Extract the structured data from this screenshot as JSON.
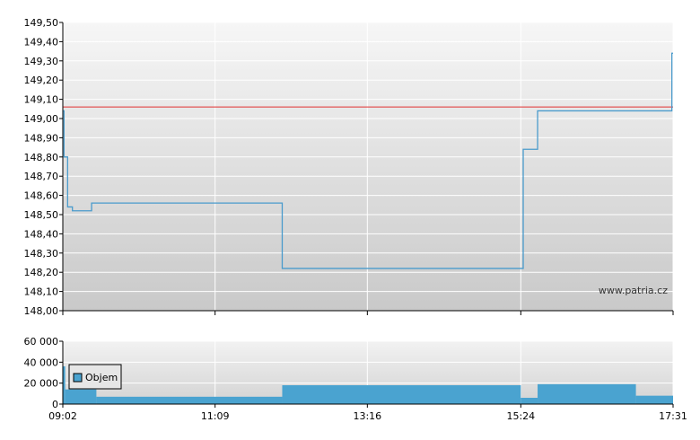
{
  "chart_data": [
    {
      "type": "line",
      "x": [
        "09:02",
        "09:03",
        "09:06",
        "09:10",
        "09:22",
        "09:26",
        "09:30",
        "12:00",
        "12:05",
        "15:24",
        "15:26",
        "15:38",
        "15:45",
        "17:30",
        "17:31"
      ],
      "values": [
        149.04,
        148.8,
        148.54,
        148.52,
        148.52,
        148.56,
        148.56,
        148.56,
        148.22,
        148.22,
        148.84,
        149.04,
        149.04,
        149.34,
        149.34
      ],
      "reference_line": 149.06,
      "ylim": [
        148.0,
        149.5
      ],
      "y_ticks": [
        "149,50",
        "149,40",
        "149,30",
        "149,20",
        "149,10",
        "149,00",
        "148,90",
        "148,80",
        "148,70",
        "148,60",
        "148,50",
        "148,40",
        "148,30",
        "148,20",
        "148,10",
        "148,00"
      ],
      "x_ticks": [
        "09:02",
        "11:09",
        "13:16",
        "15:24",
        "17:31"
      ],
      "grid": true,
      "colors": {
        "line": "#4a9bcc",
        "reference": "#e03030"
      },
      "watermark": "www.patria.cz"
    },
    {
      "type": "bar",
      "name": "Objem",
      "segments": [
        {
          "from": "09:02",
          "to": "09:04",
          "value": 36000
        },
        {
          "from": "09:04",
          "to": "09:30",
          "value": 14000
        },
        {
          "from": "09:30",
          "to": "12:05",
          "value": 7000
        },
        {
          "from": "12:05",
          "to": "15:24",
          "value": 18000
        },
        {
          "from": "15:24",
          "to": "15:38",
          "value": 6000
        },
        {
          "from": "15:38",
          "to": "17:00",
          "value": 19000
        },
        {
          "from": "17:00",
          "to": "17:31",
          "value": 8000
        }
      ],
      "ylim": [
        0,
        60000
      ],
      "y_ticks": [
        "60 000",
        "40 000",
        "20 000",
        "0"
      ],
      "legend": "Objem",
      "colors": {
        "bar": "#4aa3d0"
      }
    }
  ]
}
